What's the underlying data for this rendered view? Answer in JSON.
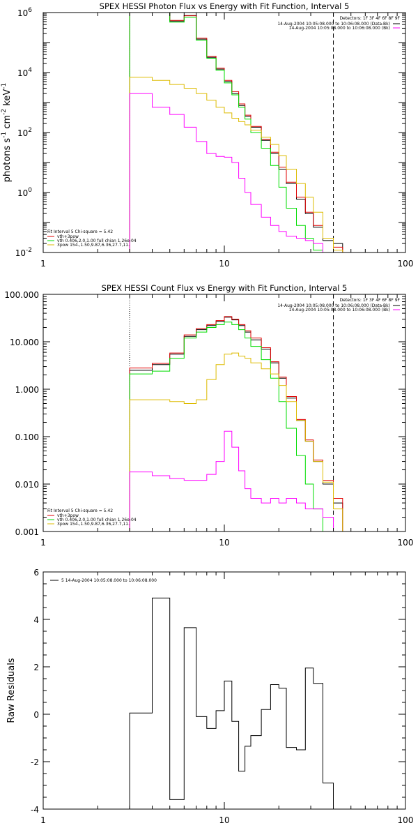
{
  "chart_data": [
    {
      "type": "line",
      "title": "SPEX HESSI Photon Flux vs Energy with Fit Function, Interval 5",
      "ylabel": "photons s$^{-1}$ cm$^{-2}$ keV$^{-1}$",
      "ylabel_parts": [
        "photons s",
        "-1",
        " cm",
        "-2",
        " keV",
        "-1"
      ],
      "xscale": "log",
      "yscale": "log",
      "xlim": [
        1,
        100
      ],
      "ylim": [
        0.01,
        1000000
      ],
      "xticks": [
        1,
        10,
        100
      ],
      "xtick_labels": [
        "1",
        "10",
        "100"
      ],
      "yticks": [
        0.01,
        1,
        100,
        10000,
        1000000
      ],
      "ytick_labels": [
        {
          "base": "10",
          "exp": "-2"
        },
        {
          "base": "10",
          "exp": "0"
        },
        {
          "base": "10",
          "exp": "2"
        },
        {
          "base": "10",
          "exp": "4"
        },
        {
          "base": "10",
          "exp": "6"
        }
      ],
      "vlines": [
        {
          "x": 3.0,
          "style": "dotted",
          "color": "#000000"
        },
        {
          "x": 40.0,
          "style": "dashed",
          "color": "#000000"
        }
      ],
      "legend_topright": {
        "header": "Detectors: 1F 3F 4F 6F 8F 9F",
        "entries": [
          {
            "label": "14-Aug-2004 10:05:08.000 to 10:06:08.000 (Data-Bk)",
            "color": "#000000"
          },
          {
            "label": "14-Aug-2004 10:05:08.000 to 10:06:08.000 (Bk)",
            "color": "#ff00ff"
          }
        ]
      },
      "legend_bottomleft": {
        "header": "Fit Interval 5   Chi-square = 5.42",
        "entries": [
          {
            "label": "vth+3pow",
            "color": "#e00000"
          },
          {
            "label": "vth 0.406,2.0,1.00   full chian 1.26e-04",
            "color": "#00dd00"
          },
          {
            "label": "3pow 154.,1.50,9.87,6.36,27.7,11.",
            "color": "#ddbb00"
          }
        ]
      },
      "edges": [
        3.0,
        4.0,
        5.0,
        6.0,
        7.0,
        8.0,
        9.0,
        10.0,
        11.0,
        12.0,
        13.0,
        14.0,
        16.0,
        18.0,
        20.0,
        22.0,
        25.0,
        28.0,
        31.0,
        35.0,
        40.0,
        45.0
      ],
      "series": [
        {
          "name": "14-Aug-2004 10:05:08.000 to 10:06:08.000 (Data-Bk)",
          "color": "#000000",
          "width": 1,
          "values": [
            1300000,
            1200000,
            520000,
            800000,
            130000,
            32000,
            13000,
            5000,
            2000,
            800,
            350,
            150,
            55,
            20,
            6,
            2,
            0.6,
            0.2,
            0.07,
            0.025,
            0.02
          ]
        },
        {
          "name": "vth+3pow",
          "color": "#e00000",
          "width": 1,
          "values": [
            1300000,
            1150000,
            550000,
            780000,
            140000,
            35000,
            14000,
            5500,
            2300,
            900,
            380,
            160,
            60,
            22,
            7,
            2.2,
            0.7,
            0.22,
            0.08,
            0.03,
            0.015
          ]
        },
        {
          "name": "vth",
          "color": "#00dd00",
          "width": 1,
          "values": [
            1300000,
            1000000,
            480000,
            700000,
            120000,
            30000,
            12000,
            4500,
            1800,
            700,
            280,
            100,
            30,
            8,
            1.5,
            0.3,
            0.08,
            0.03,
            0.012,
            0.008,
            0.005
          ]
        },
        {
          "name": "3pow",
          "color": "#ddbb00",
          "width": 1,
          "values": [
            7000,
            5500,
            4000,
            3000,
            2000,
            1200,
            700,
            450,
            300,
            230,
            180,
            120,
            70,
            40,
            17,
            6,
            2,
            0.7,
            0.22,
            0.03,
            0.012
          ]
        },
        {
          "name": "14-Aug-2004 10:05:08.000 to 10:06:08.000 (Bk)",
          "color": "#ff00ff",
          "width": 1,
          "values": [
            2000,
            700,
            400,
            150,
            50,
            20,
            16,
            15,
            10,
            3,
            1,
            0.4,
            0.15,
            0.08,
            0.05,
            0.035,
            0.03,
            0.025,
            0.02,
            0.01,
            0.005
          ]
        }
      ]
    },
    {
      "type": "line",
      "title": "SPEX HESSI Count Flux vs Energy with Fit Function, Interval 5",
      "ylabel": "",
      "xscale": "log",
      "yscale": "log",
      "xlim": [
        1,
        100
      ],
      "ylim": [
        0.001,
        100
      ],
      "xticks": [
        1,
        10,
        100
      ],
      "xtick_labels": [
        "1",
        "10",
        "100"
      ],
      "yticks": [
        0.001,
        0.01,
        0.1,
        1,
        10,
        100
      ],
      "ytick_labels": [
        "0.001",
        "0.010",
        "0.100",
        "1.000",
        "10.000",
        "100.000"
      ],
      "vlines": [
        {
          "x": 3.0,
          "style": "dotted",
          "color": "#000000"
        },
        {
          "x": 40.0,
          "style": "dashed",
          "color": "#000000"
        }
      ],
      "legend_topright": {
        "header": "Detectors: 1F 3F 4F 6F 8F 9F",
        "entries": [
          {
            "label": "14-Aug-2004 10:05:08.000 to 10:06:08.000 (Data-Bk)",
            "color": "#000000"
          },
          {
            "label": "14-Aug-2004 10:05:08.000 to 10:06:08.000 (Bk)",
            "color": "#ff00ff"
          }
        ]
      },
      "legend_bottomleft": {
        "header": "Fit Interval 5   Chi-square = 5.42",
        "entries": [
          {
            "label": "vth+3pow",
            "color": "#e00000"
          },
          {
            "label": "vth 0.406,2.0,1.00   full chian 1.26e-04",
            "color": "#00dd00"
          },
          {
            "label": "3pow 154.,1.50,9.87,6.36,27.7,11.",
            "color": "#ddbb00"
          }
        ]
      },
      "edges": [
        3.0,
        4.0,
        5.0,
        6.0,
        7.0,
        8.0,
        9.0,
        10.0,
        11.0,
        12.0,
        13.0,
        14.0,
        16.0,
        18.0,
        20.0,
        22.0,
        25.0,
        28.0,
        31.0,
        35.0,
        40.0,
        45.0
      ],
      "series": [
        {
          "name": "14-Aug-2004 10:05:08.000 to 10:06:08.000 (Data-Bk)",
          "color": "#000000",
          "width": 1,
          "values": [
            2.5,
            3.3,
            5.5,
            13,
            18,
            22,
            27,
            33,
            29,
            22,
            16,
            11,
            7,
            3.6,
            1.7,
            0.65,
            0.22,
            0.08,
            0.03,
            0.01,
            0.004
          ]
        },
        {
          "name": "vth+3pow",
          "color": "#e00000",
          "width": 1,
          "values": [
            2.8,
            3.5,
            5.8,
            14,
            19,
            23,
            28,
            34,
            30,
            23,
            17,
            12,
            7.5,
            3.8,
            1.8,
            0.7,
            0.23,
            0.085,
            0.032,
            0.012,
            0.005
          ]
        },
        {
          "name": "vth",
          "color": "#00dd00",
          "width": 1,
          "values": [
            2.1,
            2.4,
            4.5,
            12,
            16,
            20,
            23,
            26,
            23,
            18,
            12,
            8,
            4.2,
            1.7,
            0.55,
            0.15,
            0.04,
            0.01,
            0.003,
            0.001,
            0.0005
          ]
        },
        {
          "name": "3pow",
          "color": "#ddbb00",
          "width": 1,
          "values": [
            0.6,
            0.6,
            0.55,
            0.5,
            0.6,
            1.6,
            3.3,
            5.5,
            5.8,
            5.0,
            4.5,
            3.6,
            2.7,
            2.1,
            1.2,
            0.55,
            0.22,
            0.08,
            0.03,
            0.011,
            0.003
          ]
        },
        {
          "name": "14-Aug-2004 10:05:08.000 to 10:06:08.000 (Bk)",
          "color": "#ff00ff",
          "width": 1,
          "values": [
            0.018,
            0.015,
            0.013,
            0.012,
            0.012,
            0.016,
            0.03,
            0.13,
            0.06,
            0.019,
            0.008,
            0.005,
            0.004,
            0.005,
            0.004,
            0.005,
            0.004,
            0.003,
            0.003,
            0.002,
            0.001
          ]
        }
      ]
    },
    {
      "type": "line",
      "title": "",
      "ylabel": "Raw Residuals",
      "xscale": "log",
      "yscale": "linear",
      "xlim": [
        1,
        100
      ],
      "ylim": [
        -4,
        6
      ],
      "xticks": [
        1,
        10,
        100
      ],
      "xtick_labels": [
        "1",
        "10",
        "100"
      ],
      "yticks": [
        -4,
        -2,
        0,
        2,
        4,
        6
      ],
      "ytick_labels": [
        "-4",
        "-2",
        "0",
        "2",
        "4",
        "6"
      ],
      "legend_topleft": {
        "entries": [
          {
            "label": "5  14-Aug-2004 10:05:08.000 to 10:06:08.000",
            "color": "#000000"
          }
        ]
      },
      "edges": [
        3.0,
        4.0,
        5.0,
        6.0,
        7.0,
        8.0,
        9.0,
        10.0,
        11.0,
        12.0,
        13.0,
        14.0,
        16.0,
        18.0,
        20.0,
        22.0,
        25.0,
        28.0,
        31.0,
        35.0,
        40.0,
        45.0
      ],
      "series": [
        {
          "name": "5  14-Aug-2004 10:05:08.000 to 10:06:08.000",
          "color": "#000000",
          "width": 1,
          "values": [
            0.05,
            4.9,
            -3.6,
            3.65,
            -0.1,
            -0.6,
            0.15,
            1.4,
            -0.3,
            -2.4,
            -1.35,
            -0.9,
            0.2,
            1.25,
            1.1,
            -1.4,
            -1.5,
            1.95,
            1.3,
            -2.9,
            -4.0
          ]
        }
      ]
    }
  ]
}
